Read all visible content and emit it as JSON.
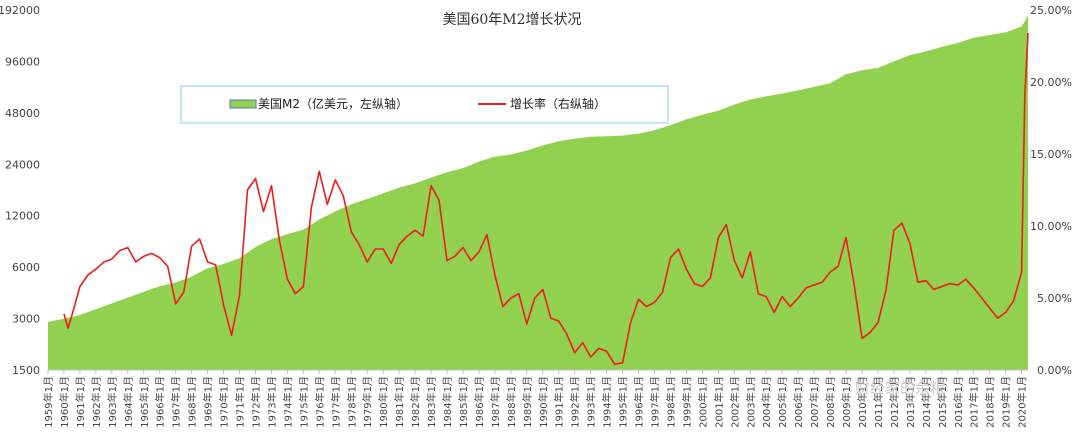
{
  "chart_data": {
    "type": "area",
    "title": "美国60年M2增长状况",
    "left_axis": {
      "scale": "log2",
      "ylim": [
        1500,
        192000
      ],
      "ticks": [
        "192000",
        "96000",
        "48000",
        "24000",
        "12000",
        "6000",
        "3000",
        "1500"
      ]
    },
    "right_axis": {
      "ylim": [
        0,
        25
      ],
      "ticks": [
        "25.00%",
        "20.00%",
        "15.00%",
        "10.00%",
        "5.00%",
        "0.00%"
      ]
    },
    "x_tick_labels": [
      "1959年1月",
      "1960年1月",
      "1961年1月",
      "1962年1月",
      "1963年1月",
      "1964年1月",
      "1965年1月",
      "1966年1月",
      "1967年1月",
      "1968年1月",
      "1969年1月",
      "1970年1月",
      "1971年1月",
      "1972年1月",
      "1973年1月",
      "1974年1月",
      "1975年1月",
      "1976年1月",
      "1977年1月",
      "1978年1月",
      "1979年1月",
      "1980年1月",
      "1981年1月",
      "1982年1月",
      "1983年1月",
      "1984年1月",
      "1985年1月",
      "1986年1月",
      "1987年1月",
      "1988年1月",
      "1989年1月",
      "1990年1月",
      "1991年1月",
      "1992年1月",
      "1993年1月",
      "1994年1月",
      "1995年1月",
      "1996年1月",
      "1997年1月",
      "1998年1月",
      "1999年1月",
      "2000年1月",
      "2001年1月",
      "2002年1月",
      "2003年1月",
      "2004年1月",
      "2005年1月",
      "2006年1月",
      "2007年1月",
      "2008年1月",
      "2009年1月",
      "2010年1月",
      "2011年1月",
      "2012年1月",
      "2013年1月",
      "2014年1月",
      "2015年1月",
      "2016年1月",
      "2017年1月",
      "2018年1月",
      "2019年1月",
      "2020年1月"
    ],
    "x_range": [
      1959.0,
      2020.4
    ],
    "series": [
      {
        "name": "美国M2（亿美元，左纵轴）",
        "axis": "left",
        "color": "#92d050",
        "x": [
          1959,
          1960,
          1961,
          1962,
          1963,
          1964,
          1965,
          1966,
          1967,
          1968,
          1969,
          1970,
          1971,
          1972,
          1973,
          1974,
          1975,
          1976,
          1977,
          1978,
          1979,
          1980,
          1981,
          1982,
          1983,
          1984,
          1985,
          1986,
          1987,
          1988,
          1989,
          1990,
          1991,
          1992,
          1993,
          1994,
          1995,
          1996,
          1997,
          1998,
          1999,
          2000,
          2001,
          2002,
          2003,
          2004,
          2005,
          2006,
          2007,
          2008,
          2009,
          2010,
          2011,
          2012,
          2013,
          2014,
          2015,
          2016,
          2017,
          2018,
          2019,
          2020.0,
          2020.2,
          2020.4
        ],
        "values": [
          2870,
          2990,
          3150,
          3410,
          3680,
          3980,
          4310,
          4640,
          4880,
          5280,
          5910,
          6260,
          6780,
          7870,
          8750,
          9360,
          9950,
          11400,
          12710,
          14000,
          15040,
          16210,
          17530,
          18540,
          20090,
          21540,
          22810,
          24870,
          26610,
          27370,
          28910,
          30900,
          32750,
          33940,
          34780,
          35010,
          35350,
          36300,
          38000,
          40650,
          44010,
          46740,
          49340,
          53740,
          57440,
          59900,
          62280,
          64960,
          68060,
          71500,
          80710,
          85160,
          87960,
          96020,
          104530,
          109880,
          116790,
          123170,
          132000,
          137000,
          142000,
          154000,
          165000,
          180000
        ]
      },
      {
        "name": "增长率（右纵轴）",
        "axis": "right",
        "color": "#ee1c1c",
        "x": [
          1960.0,
          1960.25,
          1960.5,
          1961.0,
          1961.5,
          1962.0,
          1962.5,
          1963.0,
          1963.5,
          1964.0,
          1964.5,
          1965.0,
          1965.5,
          1966.0,
          1966.5,
          1967.0,
          1967.5,
          1968.0,
          1968.5,
          1969.0,
          1969.5,
          1970.0,
          1970.5,
          1971.0,
          1971.5,
          1972.0,
          1972.5,
          1973.0,
          1973.5,
          1974.0,
          1974.5,
          1975.0,
          1975.5,
          1976.0,
          1976.5,
          1977.0,
          1977.5,
          1978.0,
          1978.5,
          1979.0,
          1979.5,
          1980.0,
          1980.5,
          1981.0,
          1981.5,
          1982.0,
          1982.5,
          1983.0,
          1983.5,
          1984.0,
          1984.5,
          1985.0,
          1985.5,
          1986.0,
          1986.5,
          1987.0,
          1987.5,
          1988.0,
          1988.5,
          1989.0,
          1989.5,
          1990.0,
          1990.5,
          1991.0,
          1991.5,
          1992.0,
          1992.5,
          1993.0,
          1993.5,
          1994.0,
          1994.5,
          1995.0,
          1995.5,
          1996.0,
          1996.5,
          1997.0,
          1997.5,
          1998.0,
          1998.5,
          1999.0,
          1999.5,
          2000.0,
          2000.5,
          2001.0,
          2001.5,
          2002.0,
          2002.5,
          2003.0,
          2003.5,
          2004.0,
          2004.5,
          2005.0,
          2005.5,
          2006.0,
          2006.5,
          2007.0,
          2007.5,
          2008.0,
          2008.5,
          2009.0,
          2009.5,
          2010.0,
          2010.5,
          2011.0,
          2011.5,
          2012.0,
          2012.5,
          2013.0,
          2013.5,
          2014.0,
          2014.5,
          2015.0,
          2015.5,
          2016.0,
          2016.5,
          2017.0,
          2017.5,
          2018.0,
          2018.5,
          2019.0,
          2019.5,
          2020.0,
          2020.2,
          2020.4
        ],
        "values": [
          3.9,
          2.9,
          3.8,
          5.8,
          6.6,
          7.0,
          7.5,
          7.7,
          8.3,
          8.5,
          7.5,
          7.9,
          8.1,
          7.8,
          7.2,
          4.6,
          5.4,
          8.6,
          9.1,
          7.5,
          7.3,
          4.5,
          2.4,
          5.2,
          12.5,
          13.3,
          11.0,
          12.8,
          9.0,
          6.3,
          5.3,
          5.8,
          11.3,
          13.8,
          11.5,
          13.2,
          12.1,
          9.6,
          8.7,
          7.5,
          8.4,
          8.4,
          7.4,
          8.7,
          9.3,
          9.7,
          9.3,
          12.8,
          11.8,
          7.6,
          7.9,
          8.5,
          7.6,
          8.2,
          9.4,
          6.6,
          4.4,
          5.0,
          5.3,
          3.2,
          5.0,
          5.6,
          3.6,
          3.4,
          2.5,
          1.2,
          1.9,
          0.9,
          1.5,
          1.3,
          0.4,
          0.5,
          3.3,
          4.9,
          4.4,
          4.7,
          5.4,
          7.8,
          8.4,
          7.0,
          6.0,
          5.8,
          6.4,
          9.2,
          10.1,
          7.6,
          6.4,
          8.2,
          5.3,
          5.1,
          4.0,
          5.1,
          4.4,
          5.0,
          5.7,
          5.9,
          6.1,
          6.8,
          7.2,
          9.2,
          6.0,
          2.2,
          2.6,
          3.3,
          5.5,
          9.7,
          10.2,
          8.8,
          6.1,
          6.2,
          5.6,
          5.8,
          6.0,
          5.9,
          6.3,
          5.7,
          5.0,
          4.3,
          3.6,
          4.0,
          4.8,
          6.8,
          19.0,
          23.4
        ]
      }
    ],
    "legend": {
      "placement": "top-center-left",
      "boxed": true
    },
    "watermark": "财经家的余粮"
  }
}
